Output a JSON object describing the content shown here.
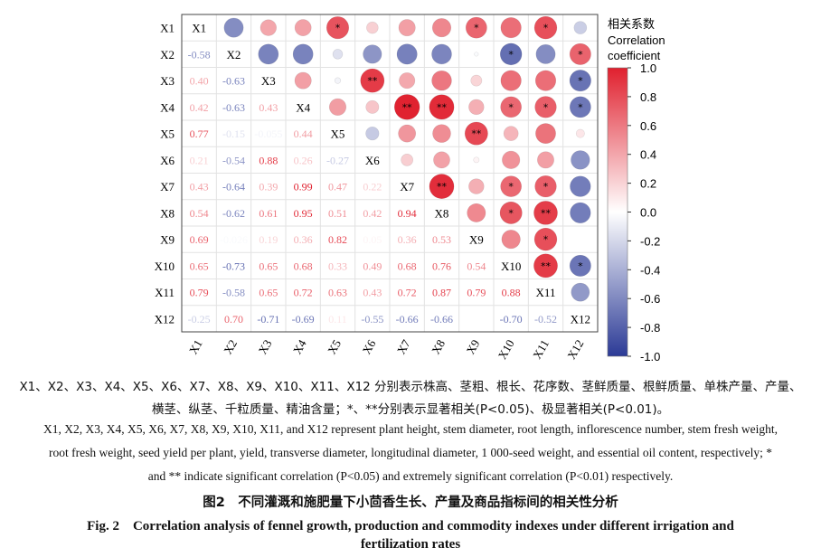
{
  "chart_data": {
    "type": "heatmap",
    "variables": [
      "X1",
      "X2",
      "X3",
      "X4",
      "X5",
      "X6",
      "X7",
      "X8",
      "X9",
      "X10",
      "X11",
      "X12"
    ],
    "lower_triangle_values": [
      [],
      [
        -0.58
      ],
      [
        0.4,
        -0.63
      ],
      [
        0.42,
        -0.63,
        0.43
      ],
      [
        0.77,
        -0.15,
        -0.055,
        0.44
      ],
      [
        0.21,
        -0.54,
        0.88,
        0.26,
        -0.27
      ],
      [
        0.43,
        -0.64,
        0.39,
        0.99,
        0.47,
        0.22
      ],
      [
        0.54,
        -0.62,
        0.61,
        0.95,
        0.51,
        0.42,
        0.94
      ],
      [
        0.69,
        -0.026,
        0.19,
        0.36,
        0.82,
        0.05,
        0.36,
        0.53
      ],
      [
        0.65,
        -0.73,
        0.65,
        0.68,
        0.33,
        0.49,
        0.68,
        0.76,
        0.54
      ],
      [
        0.79,
        -0.58,
        0.65,
        0.72,
        0.63,
        0.43,
        0.72,
        0.87,
        0.79,
        0.88
      ],
      [
        -0.25,
        0.7,
        -0.71,
        -0.69,
        0.11,
        -0.55,
        -0.66,
        -0.66,
        null,
        -0.7,
        -0.52
      ]
    ],
    "lower_triangle_labels": [
      [],
      [
        "-0.58"
      ],
      [
        "0.40",
        "-0.63"
      ],
      [
        "0.42",
        "-0.63",
        "0.43"
      ],
      [
        "0.77",
        "-0.15",
        "-0.055",
        "0.44"
      ],
      [
        "0.21",
        "-0.54",
        "0.88",
        "0.26",
        "-0.27"
      ],
      [
        "0.43",
        "-0.64",
        "0.39",
        "0.99",
        "0.47",
        "0.22"
      ],
      [
        "0.54",
        "-0.62",
        "0.61",
        "0.95",
        "0.51",
        "0.42",
        "0.94"
      ],
      [
        "0.69",
        "-0.026",
        "0.19",
        "0.36",
        "0.82",
        "0.05",
        "0.36",
        "0.53"
      ],
      [
        "0.65",
        "-0.73",
        "0.65",
        "0.68",
        "0.33",
        "0.49",
        "0.68",
        "0.76",
        "0.54"
      ],
      [
        "0.79",
        "-0.58",
        "0.65",
        "0.72",
        "0.63",
        "0.43",
        "0.72",
        "0.87",
        "0.79",
        "0.88"
      ],
      [
        "-0.25",
        "0.70",
        "-0.71",
        "-0.69",
        "0.11",
        "-0.55",
        "-0.66",
        "-0.66",
        "",
        "-0.70",
        "-0.52"
      ]
    ],
    "significance": {
      "X1": {
        "X5": "*",
        "X9": "*",
        "X11": "*"
      },
      "X2": {
        "X10": "*",
        "X12": "*"
      },
      "X3": {
        "X6": "**",
        "X12": "*"
      },
      "X4": {
        "X7": "**",
        "X8": "**",
        "X10": "*",
        "X11": "*",
        "X12": "*"
      },
      "X5": {
        "X9": "**"
      },
      "X7": {
        "X8": "**",
        "X10": "*",
        "X11": "*"
      },
      "X8": {
        "X10": "*",
        "X11": "**"
      },
      "X9": {
        "X11": "*"
      },
      "X10": {
        "X11": "**",
        "X12": "*"
      }
    },
    "colorbar": {
      "title_cn": "相关系数",
      "title_en": "Correlation coefficient",
      "range": [
        -1.0,
        1.0
      ],
      "ticks": [
        "1.0",
        "0.8",
        "0.6",
        "0.4",
        "0.2",
        "0.0",
        "-0.2",
        "-0.4",
        "-0.6",
        "-0.8",
        "-1.0"
      ],
      "low_color": "#2b3a96",
      "mid_color": "#ffffff",
      "high_color": "#e0202e"
    }
  },
  "caption": {
    "legend_cn_line1": "X1、X2、X3、X4、X5、X6、X7、X8、X9、X10、X11、X12 分别表示株高、茎粗、根长、花序数、茎鲜质量、根鲜质量、单株产量、产量、",
    "legend_cn_line2": "横茎、纵茎、千粒质量、精油含量；*、**分别表示显著相关(P<0.05)、极显著相关(P<0.01)。",
    "legend_en_line1": "X1, X2, X3, X4, X5, X6, X7, X8, X9, X10, X11, and X12 represent plant height, stem diameter, root length, inflorescence number, stem fresh weight,",
    "legend_en_line2": "root fresh weight, seed yield per plant, yield, transverse diameter, longitudinal diameter, 1 000-seed weight, and essential oil content, respectively; *",
    "legend_en_line3": "and ** indicate significant correlation (P<0.05) and extremely significant correlation (P<0.01) respectively.",
    "fig_title_cn": "图2　不同灌溉和施肥量下小茴香生长、产量及商品指标间的相关性分析",
    "fig_title_en_line1": "Fig. 2　Correlation analysis of fennel growth, production and commodity indexes under different irrigation and",
    "fig_title_en_line2": "fertilization rates"
  }
}
